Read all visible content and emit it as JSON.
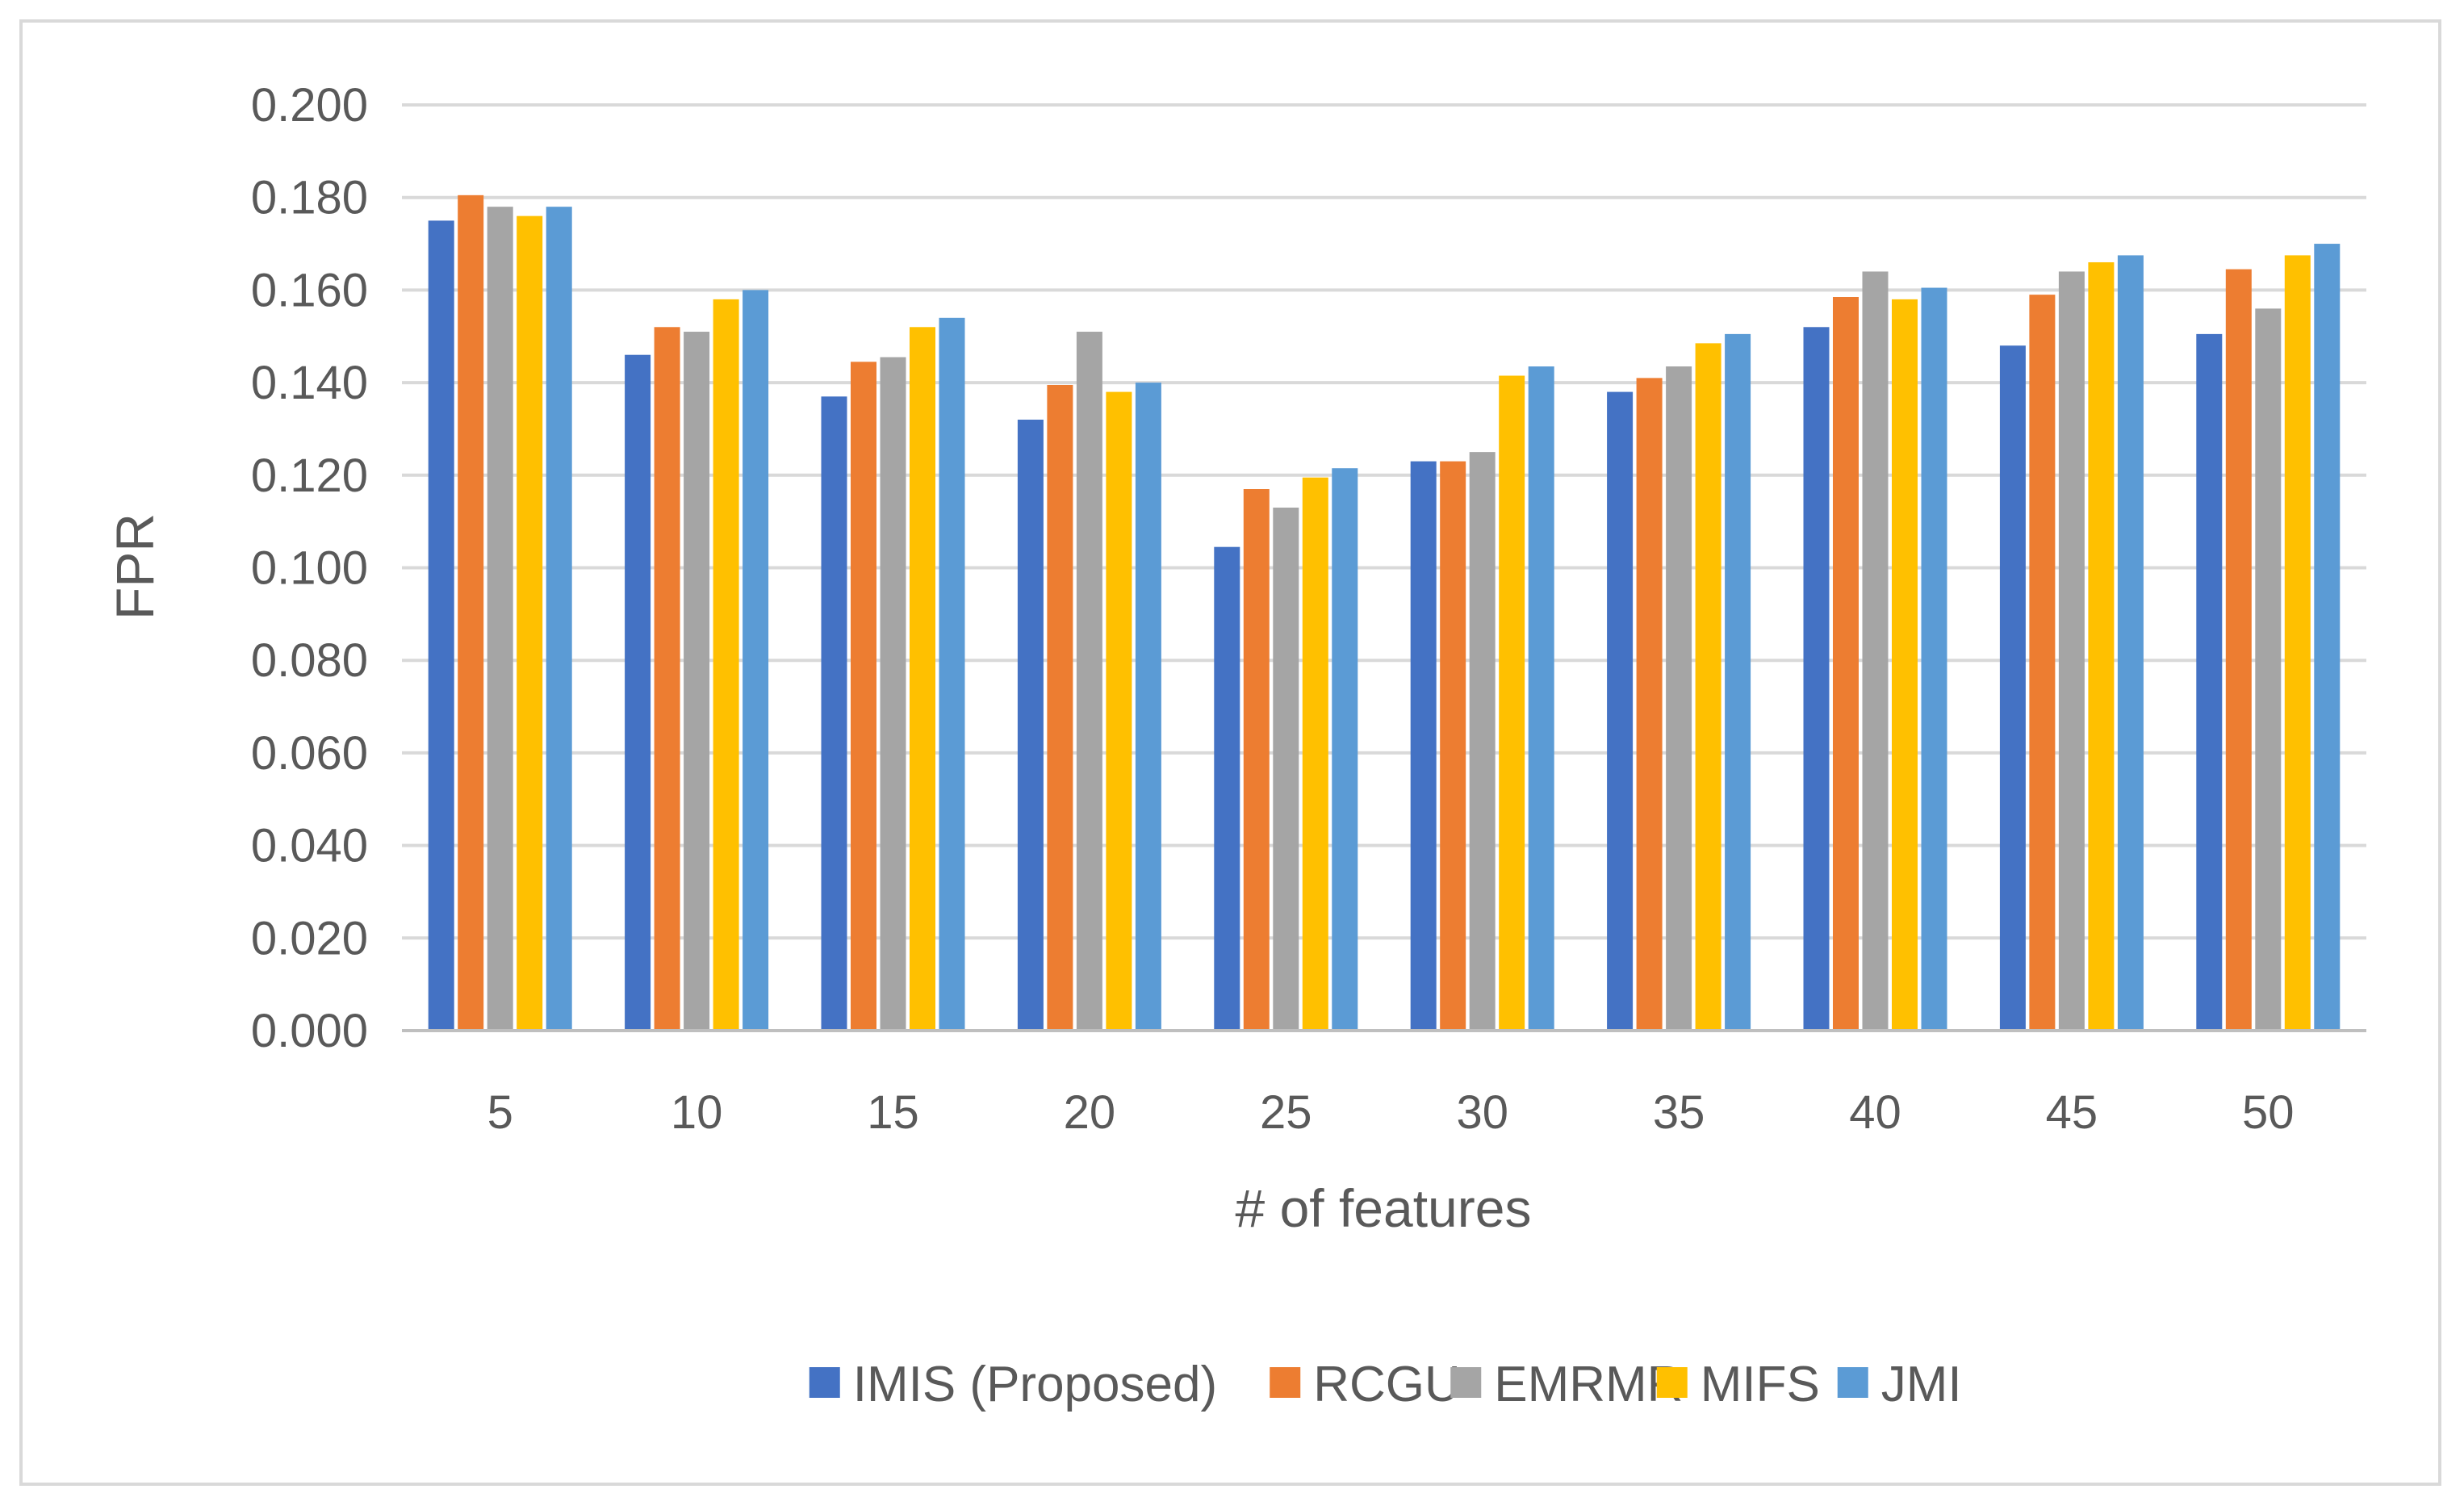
{
  "chart_data": {
    "type": "bar",
    "title": "",
    "xlabel": "# of features",
    "ylabel": "FPR",
    "categories": [
      "5",
      "10",
      "15",
      "20",
      "25",
      "30",
      "35",
      "40",
      "45",
      "50"
    ],
    "ylim": [
      0,
      0.2
    ],
    "yticks": [
      "0.000",
      "0.020",
      "0.040",
      "0.060",
      "0.080",
      "0.100",
      "0.120",
      "0.140",
      "0.160",
      "0.180",
      "0.200"
    ],
    "grid": true,
    "legend_position": "bottom",
    "series": [
      {
        "name": "IMIS (Proposed)",
        "color": "#4472C4",
        "values": [
          0.175,
          0.146,
          0.137,
          0.132,
          0.1045,
          0.123,
          0.138,
          0.152,
          0.148,
          0.1505
        ]
      },
      {
        "name": "RCGU",
        "color": "#ED7D31",
        "values": [
          0.1805,
          0.152,
          0.1445,
          0.1395,
          0.117,
          0.123,
          0.141,
          0.1585,
          0.159,
          0.1645
        ]
      },
      {
        "name": "EMRMR",
        "color": "#A5A5A5",
        "values": [
          0.178,
          0.151,
          0.1455,
          0.151,
          0.113,
          0.125,
          0.1435,
          0.164,
          0.164,
          0.156
        ]
      },
      {
        "name": "MIFS",
        "color": "#FFC000",
        "values": [
          0.176,
          0.158,
          0.152,
          0.138,
          0.1195,
          0.1415,
          0.1485,
          0.158,
          0.166,
          0.1675
        ]
      },
      {
        "name": "JMI",
        "color": "#5B9BD5",
        "values": [
          0.178,
          0.16,
          0.154,
          0.14,
          0.1215,
          0.1435,
          0.1505,
          0.1605,
          0.1675,
          0.17
        ]
      }
    ]
  }
}
